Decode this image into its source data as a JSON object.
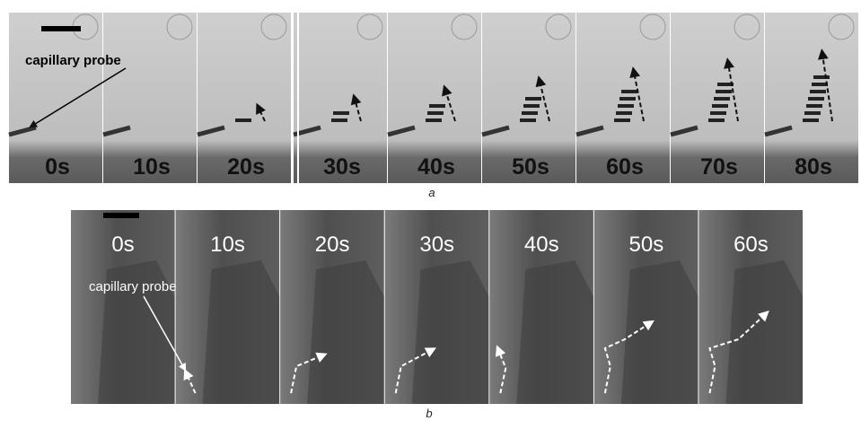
{
  "panel_a": {
    "frames": [
      "0s",
      "10s",
      "20s",
      "30s",
      "40s",
      "50s",
      "60s",
      "70s",
      "80s"
    ],
    "probe_label": "capillary probe",
    "caption": "a"
  },
  "panel_b": {
    "frames": [
      "0s",
      "10s",
      "20s",
      "30s",
      "40s",
      "50s",
      "60s"
    ],
    "probe_label": "capillary probe",
    "caption": "b"
  }
}
